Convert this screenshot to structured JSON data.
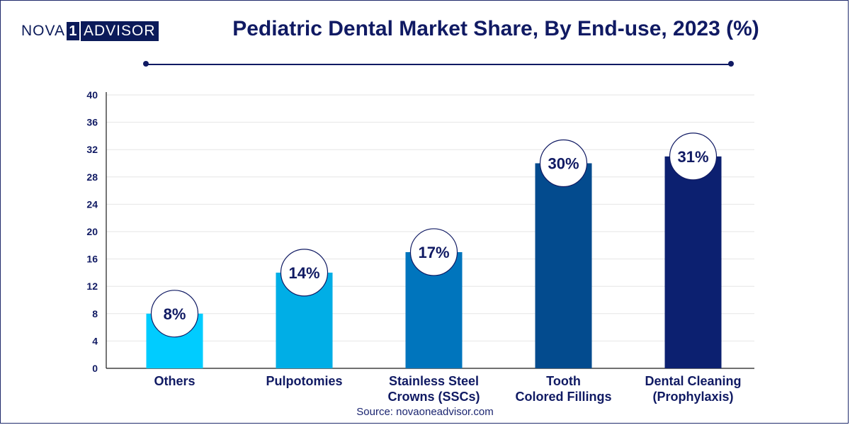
{
  "logo": {
    "part1": "NOVA",
    "part2": "1",
    "part3": "ADVISOR"
  },
  "source": "Source: novaoneadvisor.com",
  "chart_data": {
    "type": "bar",
    "title": "Pediatric Dental Market Share, By End-use, 2023 (%)",
    "categories": [
      [
        "Others"
      ],
      [
        "Pulpotomies"
      ],
      [
        "Stainless Steel",
        "Crowns (SSCs)"
      ],
      [
        "Tooth",
        "Colored Fillings"
      ],
      [
        "Dental Cleaning",
        "(Prophylaxis)"
      ]
    ],
    "values": [
      8,
      14,
      17,
      30,
      31
    ],
    "data_labels": [
      "8%",
      "14%",
      "17%",
      "30%",
      "31%"
    ],
    "colors": [
      "#00ccff",
      "#00aee6",
      "#0075bd",
      "#034b8e",
      "#0c2070"
    ],
    "ylim": [
      0,
      40
    ],
    "yticks": [
      0,
      4,
      8,
      12,
      16,
      20,
      24,
      28,
      32,
      36,
      40
    ],
    "grid": true,
    "xlabel": "",
    "ylabel": ""
  }
}
